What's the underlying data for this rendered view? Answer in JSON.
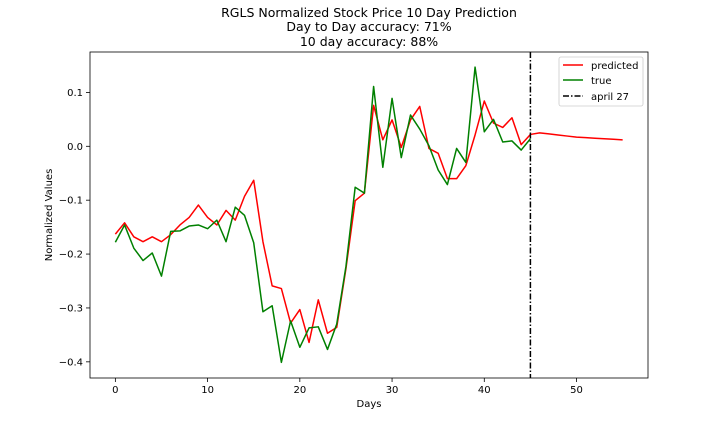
{
  "chart_data": {
    "type": "line",
    "title_lines": [
      "RGLS Normalized Stock Price 10 Day Prediction",
      "Day to Day accuracy: 71%",
      "10 day accuracy: 88%"
    ],
    "xlabel": "Days",
    "ylabel": "Normalized Values",
    "xlim": [
      -2.75,
      57.75
    ],
    "ylim": [
      -0.43,
      0.175
    ],
    "xticks": [
      0,
      10,
      20,
      30,
      40,
      50
    ],
    "yticks": [
      -0.4,
      -0.3,
      -0.2,
      -0.1,
      0.0,
      0.1
    ],
    "xtick_labels": [
      "0",
      "10",
      "20",
      "30",
      "40",
      "50"
    ],
    "ytick_labels": [
      "−0.4",
      "−0.3",
      "−0.2",
      "−0.1",
      "0.0",
      "0.1"
    ],
    "grid": false,
    "legend_position": "top-right",
    "vline": {
      "x": 45,
      "name": "april 27",
      "style": "dash-dot",
      "color": "#000000"
    },
    "series": [
      {
        "name": "predicted",
        "color": "#ff0000",
        "x": [
          0,
          1,
          2,
          3,
          4,
          5,
          6,
          7,
          8,
          9,
          10,
          11,
          12,
          13,
          14,
          15,
          16,
          17,
          18,
          19,
          20,
          21,
          22,
          23,
          24,
          25,
          26,
          27,
          28,
          29,
          30,
          31,
          32,
          33,
          34,
          35,
          36,
          37,
          38,
          39,
          40,
          41,
          42,
          43,
          44,
          45,
          46,
          47,
          48,
          49,
          50,
          51,
          52,
          53,
          54,
          55
        ],
        "values": [
          -0.163,
          -0.142,
          -0.168,
          -0.177,
          -0.168,
          -0.177,
          -0.164,
          -0.146,
          -0.132,
          -0.109,
          -0.132,
          -0.146,
          -0.119,
          -0.137,
          -0.093,
          -0.063,
          -0.177,
          -0.259,
          -0.264,
          -0.328,
          -0.303,
          -0.364,
          -0.285,
          -0.347,
          -0.336,
          -0.227,
          -0.101,
          -0.087,
          0.076,
          0.012,
          0.049,
          -0.002,
          0.049,
          0.074,
          -0.004,
          -0.013,
          -0.06,
          -0.06,
          -0.036,
          0.021,
          0.084,
          0.043,
          0.035,
          0.053,
          0.003,
          0.022,
          0.025,
          0.023,
          0.021,
          0.019,
          0.017,
          0.016,
          0.015,
          0.014,
          0.013,
          0.012
        ]
      },
      {
        "name": "true",
        "color": "#008000",
        "x": [
          0,
          1,
          2,
          3,
          4,
          5,
          6,
          7,
          8,
          9,
          10,
          11,
          12,
          13,
          14,
          15,
          16,
          17,
          18,
          19,
          20,
          21,
          22,
          23,
          24,
          25,
          26,
          27,
          28,
          29,
          30,
          31,
          32,
          33,
          34,
          35,
          36,
          37,
          38,
          39,
          40,
          41,
          42,
          43,
          44,
          45
        ],
        "values": [
          -0.178,
          -0.146,
          -0.189,
          -0.212,
          -0.198,
          -0.241,
          -0.158,
          -0.157,
          -0.148,
          -0.146,
          -0.153,
          -0.137,
          -0.177,
          -0.113,
          -0.128,
          -0.179,
          -0.307,
          -0.296,
          -0.401,
          -0.324,
          -0.373,
          -0.337,
          -0.335,
          -0.377,
          -0.33,
          -0.223,
          -0.076,
          -0.087,
          0.111,
          -0.039,
          0.089,
          -0.021,
          0.058,
          0.032,
          0.001,
          -0.044,
          -0.071,
          -0.004,
          -0.03,
          0.147,
          0.027,
          0.05,
          0.008,
          0.01,
          -0.007,
          0.014
        ]
      }
    ]
  }
}
